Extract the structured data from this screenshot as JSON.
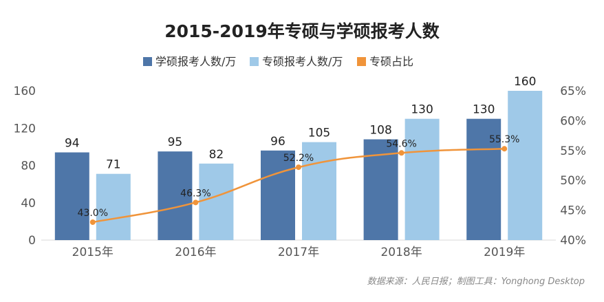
{
  "chart_data": {
    "type": "bar",
    "title": "2015-2019年专硕与学硕报考人数",
    "categories": [
      "2015年",
      "2016年",
      "2017年",
      "2018年",
      "2019年"
    ],
    "series": [
      {
        "name": "学硕报考人数/万",
        "type": "bar",
        "axis": "left",
        "color": "#4E76A8",
        "values": [
          94,
          95,
          96,
          108,
          130
        ]
      },
      {
        "name": "专硕报考人数/万",
        "type": "bar",
        "axis": "left",
        "color": "#9FC9E8",
        "values": [
          71,
          82,
          105,
          130,
          160
        ]
      },
      {
        "name": "专硕占比",
        "type": "line",
        "axis": "right",
        "color": "#F0943A",
        "values": [
          43.0,
          46.3,
          52.2,
          54.6,
          55.3
        ],
        "labels": [
          "43.0%",
          "46.3%",
          "52.2%",
          "54.6%",
          "55.3%"
        ]
      }
    ],
    "ylim": [
      0,
      160
    ],
    "yticks": [
      "0",
      "40",
      "80",
      "120",
      "160"
    ],
    "y2lim": [
      40,
      65
    ],
    "y2ticks": [
      "40%",
      "45%",
      "50%",
      "55%",
      "60%",
      "65%"
    ],
    "legend_position": "top-center",
    "grid": false
  },
  "footer": {
    "source": "数据来源：人民日报；制图工具：Yonghong Desktop"
  }
}
